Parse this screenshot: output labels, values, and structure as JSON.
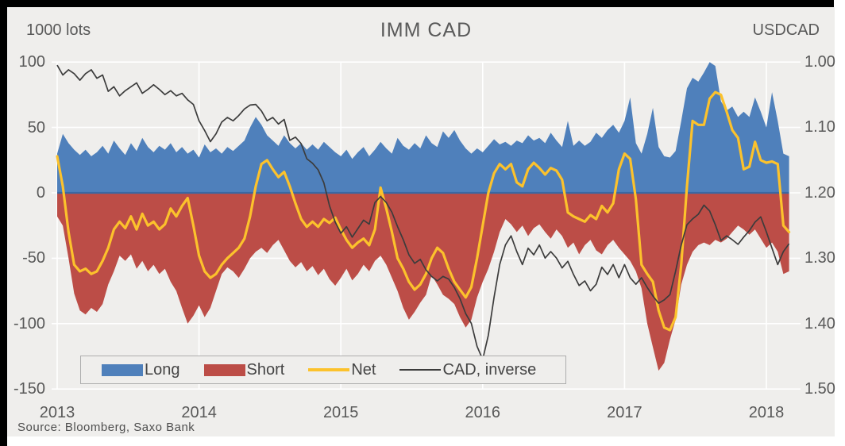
{
  "frame": {
    "bar_color": "#000000",
    "panel_color": "#efeeec"
  },
  "chart_data": {
    "type": "area",
    "title": "IMM CAD",
    "source": "Source: Bloomberg, Saxo Bank",
    "grid": true,
    "legend_position": "bottom-left-inside",
    "left_axis": {
      "label": "1000 lots",
      "tick_values": [
        100,
        50,
        0,
        -50,
        -100,
        -150
      ],
      "tick_labels": [
        "100",
        "50",
        "0",
        "-50",
        "-100",
        "-150"
      ],
      "range": [
        -150,
        100
      ]
    },
    "right_axis": {
      "label": "USDCAD",
      "tick_values": [
        1.0,
        1.1,
        1.2,
        1.3,
        1.4,
        1.5
      ],
      "tick_labels": [
        "1.00",
        "1.10",
        "1.20",
        "1.30",
        "1.40",
        "1.50"
      ],
      "range": [
        1.0,
        1.5
      ],
      "inverted": true
    },
    "x_axis": {
      "tick_values": [
        2013,
        2014,
        2015,
        2016,
        2017,
        2018
      ],
      "tick_labels": [
        "2013",
        "2014",
        "2015",
        "2016",
        "2017",
        "2018"
      ],
      "start": 2013.0,
      "step": 0.04,
      "range": [
        2013.0,
        2018.2
      ]
    },
    "series": [
      {
        "name": "Long",
        "kind": "area",
        "axis": "left",
        "color": "#4f80bb",
        "values": [
          30,
          45,
          38,
          33,
          29,
          33,
          28,
          31,
          36,
          30,
          40,
          34,
          29,
          38,
          32,
          42,
          35,
          31,
          36,
          33,
          38,
          31,
          35,
          30,
          33,
          27,
          37,
          31,
          34,
          30,
          35,
          32,
          36,
          40,
          50,
          58,
          52,
          44,
          40,
          36,
          44,
          38,
          34,
          38,
          33,
          37,
          33,
          39,
          35,
          31,
          28,
          33,
          26,
          31,
          35,
          28,
          33,
          39,
          34,
          30,
          42,
          36,
          33,
          38,
          34,
          44,
          38,
          35,
          47,
          42,
          48,
          40,
          34,
          30,
          34,
          31,
          36,
          41,
          37,
          39,
          36,
          40,
          38,
          44,
          40,
          42,
          38,
          46,
          40,
          35,
          55,
          36,
          40,
          36,
          39,
          46,
          42,
          48,
          52,
          46,
          55,
          73,
          38,
          30,
          45,
          65,
          35,
          28,
          27,
          32,
          55,
          80,
          88,
          85,
          92,
          100,
          97,
          70,
          63,
          66,
          58,
          62,
          58,
          73,
          62,
          50,
          77,
          55,
          30,
          28
        ]
      },
      {
        "name": "Short",
        "kind": "area",
        "axis": "left",
        "color": "#bc4d47",
        "values": [
          -18,
          -25,
          -50,
          -77,
          -90,
          -93,
          -88,
          -91,
          -85,
          -70,
          -60,
          -48,
          -52,
          -47,
          -58,
          -52,
          -60,
          -55,
          -62,
          -58,
          -68,
          -75,
          -88,
          -100,
          -94,
          -86,
          -95,
          -88,
          -75,
          -62,
          -57,
          -60,
          -65,
          -58,
          -50,
          -45,
          -42,
          -46,
          -40,
          -36,
          -44,
          -52,
          -57,
          -53,
          -60,
          -56,
          -63,
          -58,
          -66,
          -71,
          -65,
          -58,
          -67,
          -62,
          -55,
          -60,
          -52,
          -48,
          -55,
          -65,
          -75,
          -88,
          -97,
          -91,
          -84,
          -78,
          -63,
          -70,
          -78,
          -81,
          -85,
          -95,
          -103,
          -97,
          -80,
          -68,
          -58,
          -45,
          -30,
          -20,
          -24,
          -30,
          -25,
          -33,
          -27,
          -24,
          -30,
          -35,
          -28,
          -33,
          -42,
          -38,
          -47,
          -40,
          -36,
          -44,
          -47,
          -40,
          -36,
          -42,
          -47,
          -52,
          -60,
          -73,
          -100,
          -118,
          -136,
          -130,
          -112,
          -97,
          -70,
          -55,
          -45,
          -40,
          -38,
          -40,
          -36,
          -38,
          -35,
          -30,
          -25,
          -28,
          -32,
          -28,
          -35,
          -42,
          -38,
          -45,
          -62,
          -60
        ]
      },
      {
        "name": "Net",
        "kind": "line",
        "axis": "left",
        "color": "#fcc22c",
        "stroke_width": 3.2,
        "values": [
          28,
          5,
          -30,
          -55,
          -60,
          -58,
          -62,
          -60,
          -52,
          -42,
          -28,
          -22,
          -27,
          -18,
          -28,
          -16,
          -25,
          -22,
          -28,
          -24,
          -12,
          -18,
          -10,
          -4,
          -25,
          -48,
          -60,
          -65,
          -62,
          -55,
          -50,
          -46,
          -42,
          -35,
          -18,
          5,
          22,
          25,
          18,
          12,
          16,
          5,
          -8,
          -20,
          -26,
          -22,
          -26,
          -20,
          -23,
          -19,
          -28,
          -36,
          -42,
          -38,
          -35,
          -40,
          -28,
          4,
          -12,
          -30,
          -50,
          -58,
          -68,
          -74,
          -70,
          -62,
          -50,
          -42,
          -46,
          -58,
          -68,
          -74,
          -80,
          -72,
          -50,
          -25,
          0,
          15,
          22,
          18,
          22,
          8,
          5,
          18,
          23,
          19,
          14,
          19,
          17,
          10,
          -15,
          -18,
          -20,
          -22,
          -17,
          -20,
          -10,
          -15,
          -8,
          18,
          30,
          26,
          -5,
          -55,
          -62,
          -68,
          -90,
          -103,
          -105,
          -95,
          -55,
          5,
          55,
          52,
          52,
          72,
          77,
          75,
          62,
          48,
          42,
          18,
          20,
          39,
          25,
          23,
          24,
          22,
          -25,
          -30
        ]
      },
      {
        "name": "CAD, inverse",
        "kind": "line",
        "axis": "right",
        "color": "#3c3c3c",
        "stroke_width": 1.7,
        "values": [
          1.005,
          1.02,
          1.012,
          1.018,
          1.028,
          1.018,
          1.012,
          1.025,
          1.02,
          1.045,
          1.038,
          1.052,
          1.044,
          1.038,
          1.032,
          1.048,
          1.042,
          1.035,
          1.042,
          1.05,
          1.044,
          1.052,
          1.048,
          1.058,
          1.065,
          1.09,
          1.105,
          1.122,
          1.11,
          1.092,
          1.085,
          1.09,
          1.082,
          1.072,
          1.066,
          1.065,
          1.075,
          1.09,
          1.085,
          1.095,
          1.088,
          1.12,
          1.115,
          1.125,
          1.148,
          1.155,
          1.165,
          1.185,
          1.22,
          1.245,
          1.262,
          1.252,
          1.268,
          1.255,
          1.242,
          1.248,
          1.215,
          1.206,
          1.215,
          1.23,
          1.252,
          1.272,
          1.295,
          1.308,
          1.302,
          1.318,
          1.328,
          1.335,
          1.328,
          1.332,
          1.345,
          1.362,
          1.385,
          1.4,
          1.435,
          1.455,
          1.418,
          1.36,
          1.31,
          1.28,
          1.266,
          1.29,
          1.31,
          1.285,
          1.295,
          1.28,
          1.3,
          1.29,
          1.3,
          1.315,
          1.305,
          1.325,
          1.342,
          1.335,
          1.35,
          1.34,
          1.314,
          1.325,
          1.31,
          1.33,
          1.31,
          1.33,
          1.34,
          1.33,
          1.345,
          1.358,
          1.369,
          1.364,
          1.356,
          1.32,
          1.28,
          1.249,
          1.24,
          1.233,
          1.219,
          1.228,
          1.249,
          1.273,
          1.266,
          1.272,
          1.279,
          1.268,
          1.258,
          1.245,
          1.237,
          1.26,
          1.285,
          1.31,
          1.29,
          1.278
        ]
      }
    ],
    "legend": [
      "Long",
      "Short",
      "Net",
      "CAD, inverse"
    ],
    "style": {
      "gridline_color": "#ffffff",
      "zero_line_color": "#3a68a2",
      "text_color": "#595959"
    }
  }
}
